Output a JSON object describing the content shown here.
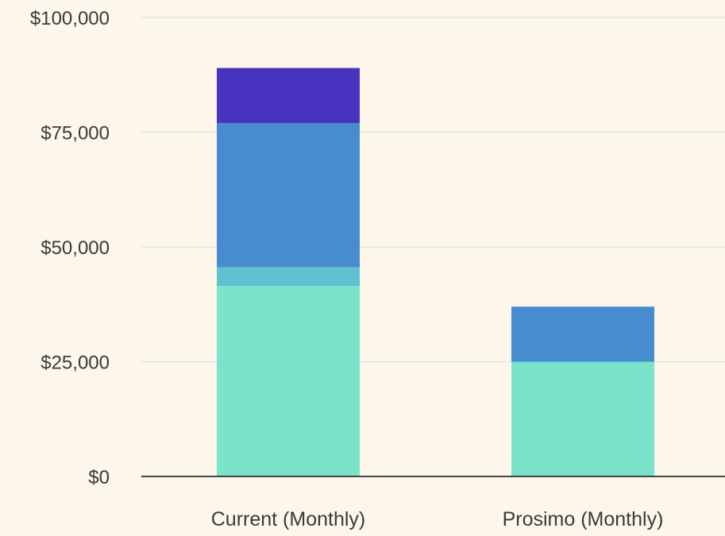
{
  "chart_data": {
    "type": "bar",
    "stacked": true,
    "title": "",
    "xlabel": "",
    "ylabel": "",
    "categories": [
      "Current (Monthly)",
      "Prosimo (Monthly)"
    ],
    "series": [
      {
        "color": "#7be3ca",
        "values": [
          41500,
          25000
        ]
      },
      {
        "color": "#62c1d0",
        "values": [
          4100,
          0
        ]
      },
      {
        "color": "#468ccf",
        "values": [
          31400,
          12000
        ]
      },
      {
        "color": "#4733bf",
        "values": [
          12000,
          0
        ]
      }
    ],
    "ylim": [
      0,
      100000
    ],
    "yticks": [
      0,
      25000,
      50000,
      75000,
      100000
    ],
    "ytick_labels": [
      "$0",
      "$25,000",
      "$50,000",
      "$75,000",
      "$100,000"
    ],
    "grid": true,
    "legend": "none"
  },
  "colors": {
    "background": "#fdf6ea",
    "gridline": "#e3e6ea",
    "axis": "#444444",
    "text": "#3a3a3a"
  }
}
